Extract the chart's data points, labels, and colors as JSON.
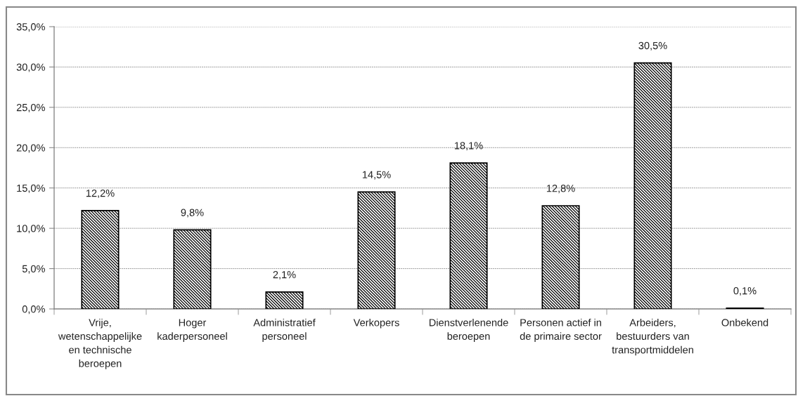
{
  "chart_data": {
    "type": "bar",
    "categories": [
      "Vrije,\nwetenschappelijke\nen technische\nberoepen",
      "Hoger\nkaderpersoneel",
      "Administratief\npersoneel",
      "Verkopers",
      "Dienstverlenende\nberoepen",
      "Personen actief in\nde primaire sector",
      "Arbeiders,\nbestuurders van\ntransportmiddelen",
      "Onbekend"
    ],
    "values": [
      12.2,
      9.8,
      2.1,
      14.5,
      18.1,
      12.8,
      30.5,
      0.1
    ],
    "value_labels": [
      "12,2%",
      "9,8%",
      "2,1%",
      "14,5%",
      "18,1%",
      "12,8%",
      "30,5%",
      "0,1%"
    ],
    "color": "#000000",
    "ylim": [
      0,
      35
    ],
    "yticks": [
      {
        "value": 0,
        "label": "0,0%"
      },
      {
        "value": 5,
        "label": "5,0%"
      },
      {
        "value": 10,
        "label": "10,0%"
      },
      {
        "value": 15,
        "label": "15,0%"
      },
      {
        "value": 20,
        "label": "20,0%"
      },
      {
        "value": 25,
        "label": "25,0%"
      },
      {
        "value": 30,
        "label": "30,0%"
      },
      {
        "value": 35,
        "label": "35,0%"
      }
    ],
    "grid": "y",
    "legend": false
  }
}
